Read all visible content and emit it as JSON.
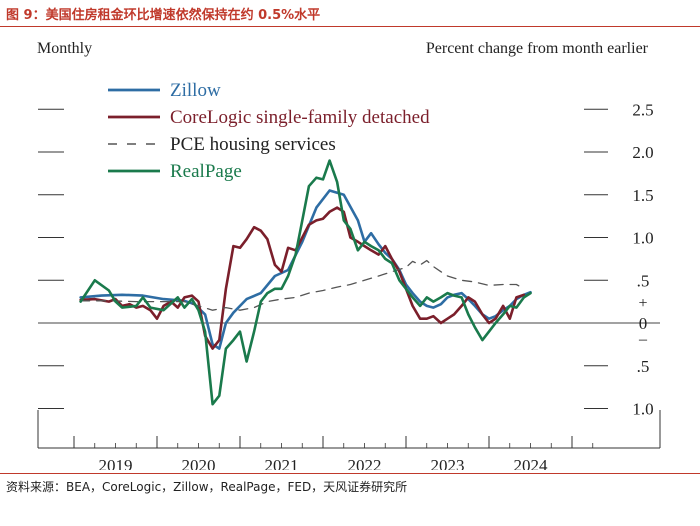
{
  "figure": {
    "title": "图 9：美国住房租金环比增速依然保持在约 0.5%水平",
    "source": "资料来源：BEA，CoreLogic，Zillow，RealPage，FED，天风证券研究所"
  },
  "chart_data": {
    "type": "line",
    "subtitle_left": "Monthly",
    "subtitle_right": "Percent change from month earlier",
    "ylim": [
      -1.0,
      2.5
    ],
    "y_ticks": [
      {
        "value": 2.5,
        "label": "2.5"
      },
      {
        "value": 2.0,
        "label": "2.0"
      },
      {
        "value": 1.5,
        "label": "1.5"
      },
      {
        "value": 1.0,
        "label": "1.0"
      },
      {
        "value": 0.5,
        "label": ".5"
      },
      {
        "value": 0.0,
        "label": "0"
      },
      {
        "value": -0.5,
        "label": ".5"
      },
      {
        "value": -1.0,
        "label": "1.0"
      }
    ],
    "sign_labels": {
      "plus": "+",
      "minus": "–"
    },
    "x_ticks": [
      "2019",
      "2020",
      "2021",
      "2022",
      "2023",
      "2024"
    ],
    "grid": false,
    "legend_position": "top-left",
    "series": [
      {
        "name": "Zillow",
        "color": "#2e6da4",
        "style": "solid",
        "points": [
          [
            2018.58,
            0.3
          ],
          [
            2018.83,
            0.32
          ],
          [
            2019.08,
            0.33
          ],
          [
            2019.33,
            0.32
          ],
          [
            2019.58,
            0.28
          ],
          [
            2019.83,
            0.26
          ],
          [
            2019.95,
            0.22
          ],
          [
            2020.08,
            0.1
          ],
          [
            2020.17,
            -0.25
          ],
          [
            2020.25,
            -0.3
          ],
          [
            2020.33,
            0.0
          ],
          [
            2020.42,
            0.12
          ],
          [
            2020.58,
            0.28
          ],
          [
            2020.75,
            0.35
          ],
          [
            2020.92,
            0.55
          ],
          [
            2021.08,
            0.62
          ],
          [
            2021.25,
            0.95
          ],
          [
            2021.42,
            1.35
          ],
          [
            2021.58,
            1.55
          ],
          [
            2021.75,
            1.5
          ],
          [
            2021.92,
            1.2
          ],
          [
            2022.0,
            0.95
          ],
          [
            2022.08,
            1.05
          ],
          [
            2022.17,
            0.92
          ],
          [
            2022.25,
            0.82
          ],
          [
            2022.33,
            0.75
          ],
          [
            2022.42,
            0.62
          ],
          [
            2022.5,
            0.45
          ],
          [
            2022.58,
            0.35
          ],
          [
            2022.67,
            0.25
          ],
          [
            2022.75,
            0.2
          ],
          [
            2022.83,
            0.18
          ],
          [
            2022.92,
            0.22
          ],
          [
            2023.0,
            0.3
          ],
          [
            2023.08,
            0.33
          ],
          [
            2023.17,
            0.35
          ],
          [
            2023.25,
            0.28
          ],
          [
            2023.33,
            0.2
          ],
          [
            2023.42,
            0.1
          ],
          [
            2023.5,
            0.05
          ],
          [
            2023.58,
            0.08
          ],
          [
            2023.67,
            0.15
          ],
          [
            2023.75,
            0.2
          ],
          [
            2023.83,
            0.28
          ],
          [
            2023.92,
            0.33
          ],
          [
            2024.0,
            0.36
          ]
        ]
      },
      {
        "name": "CoreLogic single-family detached",
        "color": "#7b1f2b",
        "style": "solid",
        "points": [
          [
            2018.58,
            0.27
          ],
          [
            2018.75,
            0.28
          ],
          [
            2018.92,
            0.25
          ],
          [
            2019.0,
            0.28
          ],
          [
            2019.08,
            0.2
          ],
          [
            2019.17,
            0.22
          ],
          [
            2019.25,
            0.18
          ],
          [
            2019.33,
            0.2
          ],
          [
            2019.42,
            0.15
          ],
          [
            2019.5,
            0.05
          ],
          [
            2019.58,
            0.2
          ],
          [
            2019.67,
            0.25
          ],
          [
            2019.75,
            0.18
          ],
          [
            2019.83,
            0.3
          ],
          [
            2019.92,
            0.32
          ],
          [
            2020.0,
            0.25
          ],
          [
            2020.08,
            -0.15
          ],
          [
            2020.17,
            -0.3
          ],
          [
            2020.25,
            -0.2
          ],
          [
            2020.33,
            0.4
          ],
          [
            2020.42,
            0.9
          ],
          [
            2020.5,
            0.88
          ],
          [
            2020.58,
            0.98
          ],
          [
            2020.67,
            1.12
          ],
          [
            2020.75,
            1.08
          ],
          [
            2020.83,
            0.98
          ],
          [
            2020.92,
            0.68
          ],
          [
            2021.0,
            0.6
          ],
          [
            2021.08,
            0.88
          ],
          [
            2021.17,
            0.85
          ],
          [
            2021.25,
            1.0
          ],
          [
            2021.33,
            1.15
          ],
          [
            2021.42,
            1.2
          ],
          [
            2021.5,
            1.22
          ],
          [
            2021.58,
            1.3
          ],
          [
            2021.67,
            1.35
          ],
          [
            2021.75,
            1.3
          ],
          [
            2021.83,
            1.0
          ],
          [
            2021.92,
            0.95
          ],
          [
            2022.0,
            0.9
          ],
          [
            2022.08,
            0.85
          ],
          [
            2022.17,
            0.8
          ],
          [
            2022.25,
            0.9
          ],
          [
            2022.33,
            0.75
          ],
          [
            2022.42,
            0.6
          ],
          [
            2022.5,
            0.4
          ],
          [
            2022.58,
            0.2
          ],
          [
            2022.67,
            0.05
          ],
          [
            2022.75,
            0.05
          ],
          [
            2022.83,
            0.08
          ],
          [
            2022.92,
            0.0
          ],
          [
            2023.0,
            0.05
          ],
          [
            2023.08,
            0.1
          ],
          [
            2023.17,
            0.2
          ],
          [
            2023.25,
            0.3
          ],
          [
            2023.33,
            0.25
          ],
          [
            2023.42,
            0.1
          ],
          [
            2023.5,
            0.0
          ],
          [
            2023.58,
            0.05
          ],
          [
            2023.67,
            0.2
          ],
          [
            2023.75,
            0.05
          ],
          [
            2023.83,
            0.3
          ],
          [
            2023.92,
            0.33
          ]
        ]
      },
      {
        "name": "PCE housing services",
        "color": "#555555",
        "style": "dashed",
        "points": [
          [
            2018.58,
            0.26
          ],
          [
            2018.92,
            0.26
          ],
          [
            2019.25,
            0.25
          ],
          [
            2019.58,
            0.25
          ],
          [
            2019.83,
            0.25
          ],
          [
            2020.0,
            0.2
          ],
          [
            2020.17,
            0.15
          ],
          [
            2020.33,
            0.18
          ],
          [
            2020.5,
            0.15
          ],
          [
            2020.67,
            0.18
          ],
          [
            2020.83,
            0.25
          ],
          [
            2021.0,
            0.28
          ],
          [
            2021.17,
            0.3
          ],
          [
            2021.33,
            0.35
          ],
          [
            2021.5,
            0.38
          ],
          [
            2021.67,
            0.42
          ],
          [
            2021.83,
            0.45
          ],
          [
            2022.0,
            0.5
          ],
          [
            2022.17,
            0.55
          ],
          [
            2022.33,
            0.6
          ],
          [
            2022.5,
            0.65
          ],
          [
            2022.58,
            0.72
          ],
          [
            2022.67,
            0.68
          ],
          [
            2022.75,
            0.73
          ],
          [
            2022.83,
            0.66
          ],
          [
            2022.92,
            0.6
          ],
          [
            2023.0,
            0.55
          ],
          [
            2023.17,
            0.5
          ],
          [
            2023.33,
            0.48
          ],
          [
            2023.5,
            0.44
          ],
          [
            2023.67,
            0.45
          ],
          [
            2023.83,
            0.45
          ],
          [
            2023.92,
            0.4
          ]
        ]
      },
      {
        "name": "RealPage",
        "color": "#1a7a4c",
        "style": "solid",
        "points": [
          [
            2018.58,
            0.25
          ],
          [
            2018.75,
            0.5
          ],
          [
            2018.92,
            0.38
          ],
          [
            2019.0,
            0.25
          ],
          [
            2019.08,
            0.18
          ],
          [
            2019.25,
            0.2
          ],
          [
            2019.33,
            0.3
          ],
          [
            2019.42,
            0.18
          ],
          [
            2019.58,
            0.15
          ],
          [
            2019.75,
            0.3
          ],
          [
            2019.83,
            0.18
          ],
          [
            2019.92,
            0.28
          ],
          [
            2020.0,
            0.15
          ],
          [
            2020.08,
            -0.1
          ],
          [
            2020.17,
            -0.95
          ],
          [
            2020.25,
            -0.85
          ],
          [
            2020.33,
            -0.3
          ],
          [
            2020.42,
            -0.2
          ],
          [
            2020.5,
            -0.1
          ],
          [
            2020.58,
            -0.45
          ],
          [
            2020.67,
            -0.1
          ],
          [
            2020.75,
            0.25
          ],
          [
            2020.83,
            0.35
          ],
          [
            2020.92,
            0.4
          ],
          [
            2021.0,
            0.4
          ],
          [
            2021.08,
            0.55
          ],
          [
            2021.17,
            0.8
          ],
          [
            2021.25,
            1.2
          ],
          [
            2021.33,
            1.6
          ],
          [
            2021.42,
            1.7
          ],
          [
            2021.5,
            1.68
          ],
          [
            2021.58,
            1.9
          ],
          [
            2021.67,
            1.65
          ],
          [
            2021.75,
            1.2
          ],
          [
            2021.83,
            1.1
          ],
          [
            2021.92,
            0.85
          ],
          [
            2022.0,
            0.95
          ],
          [
            2022.08,
            0.9
          ],
          [
            2022.17,
            0.85
          ],
          [
            2022.25,
            0.75
          ],
          [
            2022.33,
            0.7
          ],
          [
            2022.42,
            0.5
          ],
          [
            2022.5,
            0.4
          ],
          [
            2022.58,
            0.3
          ],
          [
            2022.67,
            0.2
          ],
          [
            2022.75,
            0.3
          ],
          [
            2022.83,
            0.25
          ],
          [
            2022.92,
            0.3
          ],
          [
            2023.0,
            0.35
          ],
          [
            2023.08,
            0.32
          ],
          [
            2023.17,
            0.3
          ],
          [
            2023.25,
            0.1
          ],
          [
            2023.33,
            -0.05
          ],
          [
            2023.42,
            -0.2
          ],
          [
            2023.5,
            -0.1
          ],
          [
            2023.58,
            0.0
          ],
          [
            2023.67,
            0.1
          ],
          [
            2023.75,
            0.2
          ],
          [
            2023.83,
            0.18
          ],
          [
            2023.92,
            0.3
          ],
          [
            2024.0,
            0.35
          ]
        ]
      }
    ]
  }
}
